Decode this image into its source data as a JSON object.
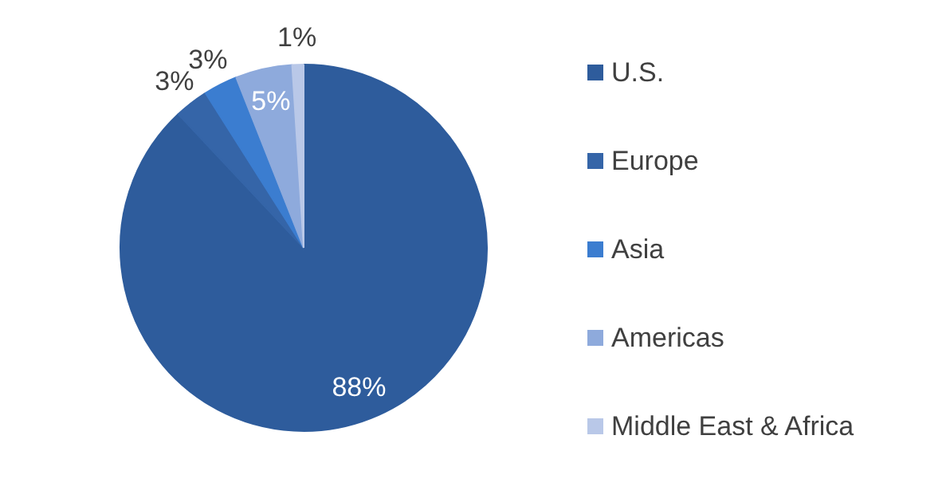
{
  "chart_data": {
    "type": "pie",
    "categories": [
      "U.S.",
      "Europe",
      "Asia",
      "Americas",
      "Middle East & Africa"
    ],
    "values": [
      88,
      3,
      3,
      5,
      1
    ],
    "colors": [
      "#2e5c9c",
      "#3565a8",
      "#3b7dd0",
      "#8eaadc",
      "#b9c8e8"
    ],
    "value_labels": [
      "88%",
      "3%",
      "3%",
      "5%",
      "1%"
    ],
    "legend": "right"
  }
}
